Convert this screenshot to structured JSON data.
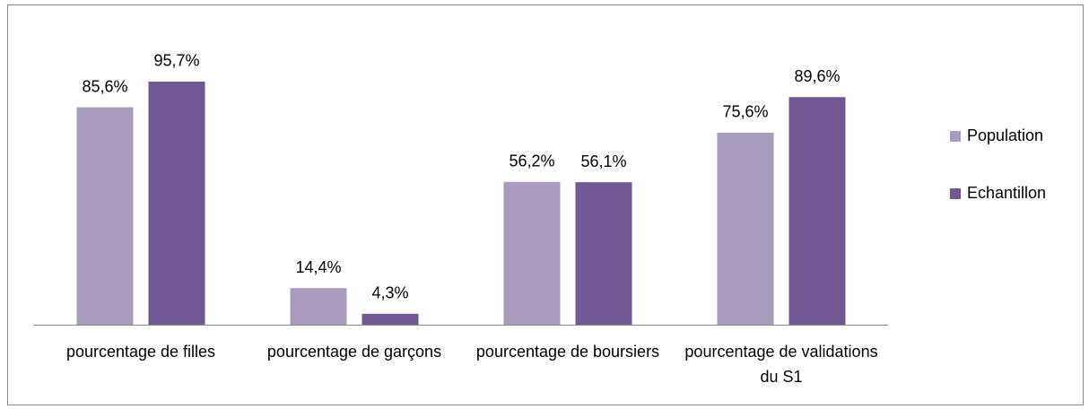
{
  "chart_data": {
    "type": "bar",
    "categories": [
      "pourcentage de filles",
      "pourcentage de garçons",
      "pourcentage de boursiers",
      "pourcentage de validations du S1"
    ],
    "series": [
      {
        "name": "Population",
        "color": "#a99bbd",
        "values": [
          85.6,
          14.4,
          56.2,
          75.6
        ],
        "value_labels": [
          "85,6%",
          "14,4%",
          "56,2%",
          "75,6%"
        ]
      },
      {
        "name": "Echantillon",
        "color": "#725892",
        "values": [
          95.7,
          4.3,
          56.1,
          89.6
        ],
        "value_labels": [
          "95,7%",
          "4,3%",
          "56,1%",
          "89,6%"
        ]
      }
    ],
    "legend": "right"
  }
}
